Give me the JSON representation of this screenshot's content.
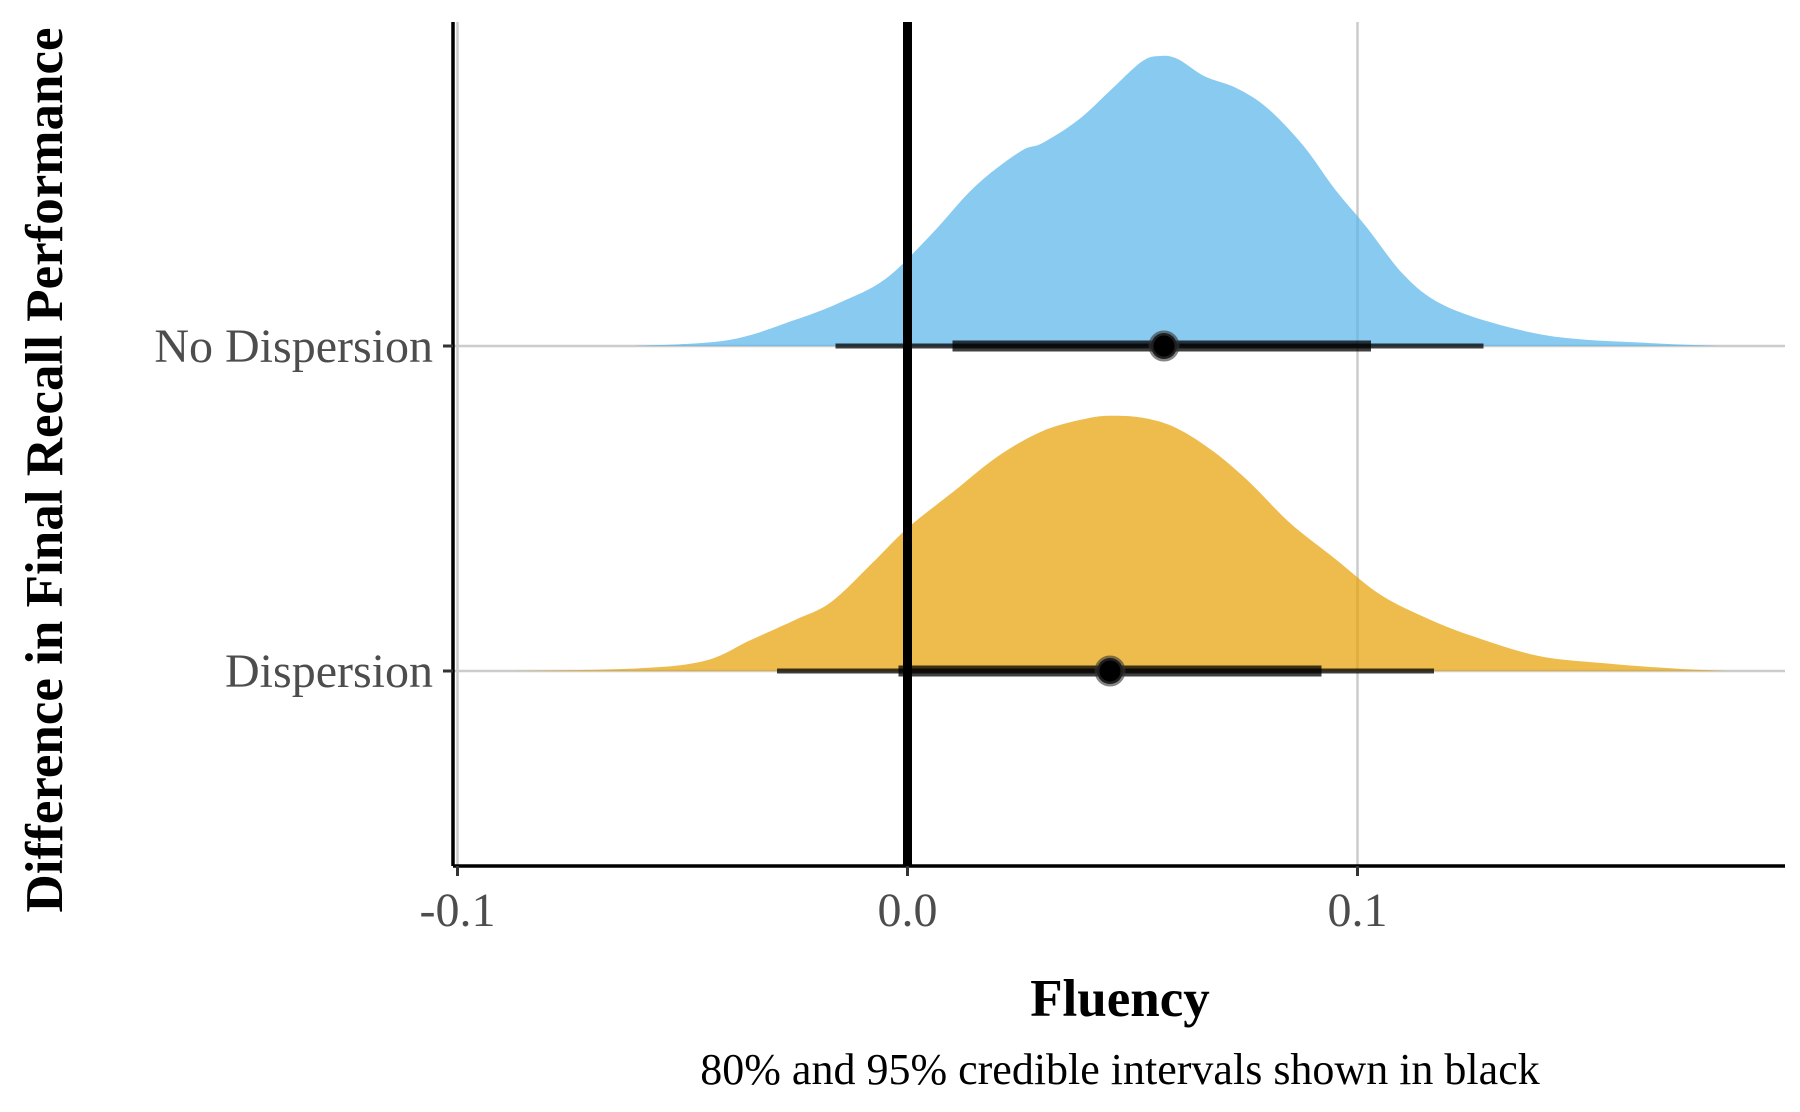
{
  "chart_data": {
    "type": "ridgeline-density",
    "xlabel": "Fluency",
    "ylabel": "Difference in Final Recall Performance",
    "caption": "80% and 95% credible intervals shown in black",
    "xlim": [
      -0.101,
      0.195
    ],
    "x_ticks": [
      {
        "value": -0.1,
        "label": "-0.1"
      },
      {
        "value": 0.0,
        "label": "0.0"
      },
      {
        "value": 0.1,
        "label": "0.1"
      }
    ],
    "reference_line": 0.0,
    "grid": true,
    "legend": "none",
    "series": [
      {
        "name": "No Dispersion",
        "color": "#56B4E9",
        "point": 0.057,
        "ci80": [
          0.01,
          0.103
        ],
        "ci95": [
          -0.016,
          0.128
        ],
        "density_height": 1.0,
        "density": [
          [
            -0.061,
            0.0
          ],
          [
            -0.04,
            0.02
          ],
          [
            -0.025,
            0.09
          ],
          [
            -0.015,
            0.15
          ],
          [
            -0.005,
            0.23
          ],
          [
            0.005,
            0.38
          ],
          [
            0.015,
            0.55
          ],
          [
            0.025,
            0.67
          ],
          [
            0.03,
            0.7
          ],
          [
            0.038,
            0.78
          ],
          [
            0.045,
            0.88
          ],
          [
            0.052,
            0.98
          ],
          [
            0.056,
            1.0
          ],
          [
            0.06,
            0.99
          ],
          [
            0.066,
            0.93
          ],
          [
            0.073,
            0.89
          ],
          [
            0.08,
            0.82
          ],
          [
            0.088,
            0.69
          ],
          [
            0.095,
            0.54
          ],
          [
            0.102,
            0.41
          ],
          [
            0.11,
            0.25
          ],
          [
            0.118,
            0.15
          ],
          [
            0.13,
            0.08
          ],
          [
            0.145,
            0.03
          ],
          [
            0.165,
            0.01
          ],
          [
            0.18,
            0.0
          ]
        ]
      },
      {
        "name": "Dispersion",
        "color": "#E69F00",
        "point": 0.045,
        "ci80": [
          -0.002,
          0.092
        ],
        "ci95": [
          -0.029,
          0.117
        ],
        "density_height": 0.88,
        "density": [
          [
            -0.088,
            0.0
          ],
          [
            -0.06,
            0.01
          ],
          [
            -0.045,
            0.04
          ],
          [
            -0.035,
            0.12
          ],
          [
            -0.025,
            0.2
          ],
          [
            -0.017,
            0.27
          ],
          [
            -0.008,
            0.42
          ],
          [
            0.0,
            0.56
          ],
          [
            0.01,
            0.7
          ],
          [
            0.02,
            0.84
          ],
          [
            0.03,
            0.94
          ],
          [
            0.04,
            0.99
          ],
          [
            0.046,
            1.0
          ],
          [
            0.053,
            0.99
          ],
          [
            0.06,
            0.95
          ],
          [
            0.068,
            0.86
          ],
          [
            0.076,
            0.74
          ],
          [
            0.085,
            0.58
          ],
          [
            0.095,
            0.44
          ],
          [
            0.105,
            0.3
          ],
          [
            0.115,
            0.21
          ],
          [
            0.125,
            0.14
          ],
          [
            0.14,
            0.06
          ],
          [
            0.155,
            0.03
          ],
          [
            0.17,
            0.01
          ],
          [
            0.182,
            0.0
          ]
        ]
      }
    ]
  }
}
